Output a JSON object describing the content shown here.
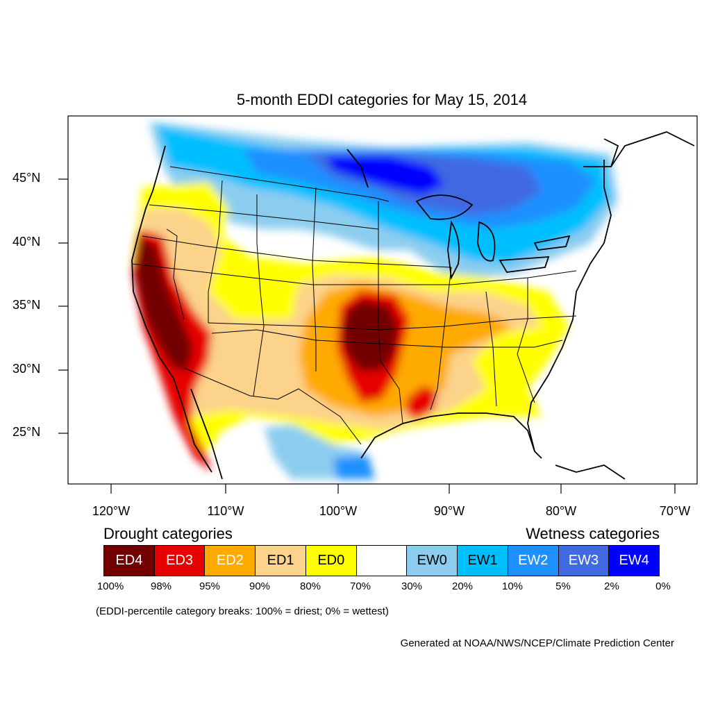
{
  "map": {
    "title": "5-month EDDI categories for May 15, 2014",
    "lat_labels": [
      "45°N",
      "40°N",
      "35°N",
      "30°N",
      "25°N"
    ],
    "lon_labels": [
      "120°W",
      "110°W",
      "100°W",
      "90°W",
      "80°W",
      "70°W"
    ]
  },
  "legend": {
    "drought_title": "Drought categories",
    "wetness_title": "Wetness categories",
    "categories": [
      {
        "label": "ED4",
        "color": "#730000",
        "text_color": "#ffffff"
      },
      {
        "label": "ED3",
        "color": "#e60000",
        "text_color": "#ffffff"
      },
      {
        "label": "ED2",
        "color": "#ffaa00",
        "text_color": "#ffffff"
      },
      {
        "label": "ED1",
        "color": "#fcd38b",
        "text_color": "#000000"
      },
      {
        "label": "ED0",
        "color": "#ffff00",
        "text_color": "#000000"
      },
      {
        "label": "",
        "color": "#ffffff",
        "text_color": "#000000"
      },
      {
        "label": "EW0",
        "color": "#8ccdef",
        "text_color": "#000000"
      },
      {
        "label": "EW1",
        "color": "#00bfff",
        "text_color": "#000000"
      },
      {
        "label": "EW2",
        "color": "#1e90ff",
        "text_color": "#ffffff"
      },
      {
        "label": "EW3",
        "color": "#4169e1",
        "text_color": "#ffffff"
      },
      {
        "label": "EW4",
        "color": "#0000ff",
        "text_color": "#ffffff"
      }
    ],
    "breaks": [
      "100%",
      "98%",
      "95%",
      "90%",
      "80%",
      "70%",
      "30%",
      "20%",
      "10%",
      "5%",
      "2%",
      "0%"
    ],
    "note": "(EDDI-percentile category breaks: 100% = driest; 0% = wettest)"
  },
  "credit": "Generated at NOAA/NWS/NCEP/Climate Prediction Center"
}
